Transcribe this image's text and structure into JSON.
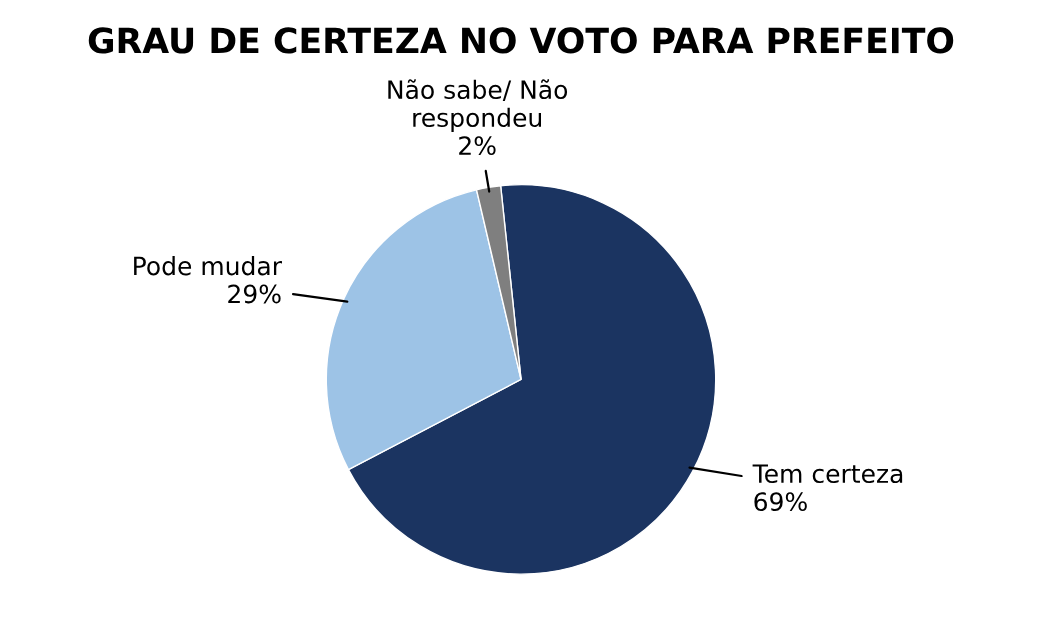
{
  "chart_data": {
    "type": "pie",
    "title": "GRAU DE CERTEZA NO VOTO PARA PREFEITO",
    "categories": [
      "Tem certeza",
      "Pode mudar",
      "Não sabe/ Não\nrespondeu"
    ],
    "values": [
      69,
      29,
      2
    ],
    "colors": [
      "#1b3461",
      "#9dc3e6",
      "#7f7f7f"
    ],
    "value_labels": [
      "69%",
      "29%",
      "2%"
    ],
    "legend": false
  }
}
